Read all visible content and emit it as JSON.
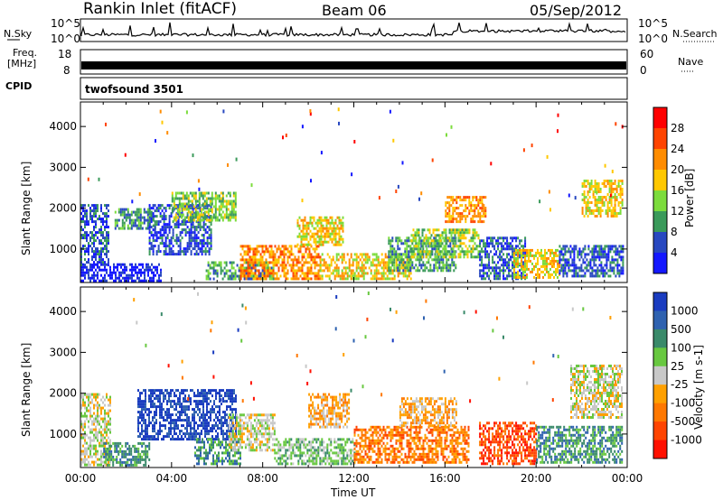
{
  "header": {
    "station": "Rankin Inlet (fitACF)",
    "beam": "Beam 06",
    "date": "05/Sep/2012"
  },
  "top_panels": {
    "nsky_label": "N.Sky",
    "nsearch_label": "N.Search",
    "nsky_ticks": [
      "10^5",
      "10^0"
    ],
    "nsearch_ticks": [
      "10^5",
      "10^0"
    ],
    "freq_label_1": "Freq.",
    "freq_label_2": "[MHz]",
    "freq_ticks": [
      "18",
      "8"
    ],
    "nave_label": "Nave",
    "nave_ticks": [
      "60",
      "0"
    ],
    "cpid_label": "CPID",
    "cpid_value": "twofsound 3501"
  },
  "chart_data": [
    {
      "type": "heatmap",
      "name": "power-panel",
      "ylabel": "Slant Range [km]",
      "yticks": [
        1000,
        2000,
        3000,
        4000
      ],
      "ylim": [
        180,
        4600
      ],
      "xlim_hours": [
        0,
        24
      ],
      "colorbar_label": "Power [dB]",
      "colorbar_ticks": [
        "28",
        "24",
        "20",
        "16",
        "12",
        "8",
        "4"
      ],
      "colorbar_colors": [
        "#ff0000",
        "#ff4400",
        "#ff8c00",
        "#ffc800",
        "#7cdc3c",
        "#3a9a5a",
        "#2848c0",
        "#1418ff"
      ],
      "regions": [
        {
          "t0": 0.0,
          "t1": 3.5,
          "r0": 200,
          "r1": 650,
          "level": 7
        },
        {
          "t0": 0.0,
          "t1": 1.2,
          "r0": 600,
          "r1": 2100,
          "level": 6
        },
        {
          "t0": 1.5,
          "t1": 3.3,
          "r0": 1500,
          "r1": 2000,
          "level": 5
        },
        {
          "t0": 3.0,
          "t1": 5.7,
          "r0": 900,
          "r1": 2100,
          "level": 6
        },
        {
          "t0": 4.0,
          "t1": 6.8,
          "r0": 1700,
          "r1": 2400,
          "level": 4
        },
        {
          "t0": 5.5,
          "t1": 8.5,
          "r0": 250,
          "r1": 700,
          "level": 5
        },
        {
          "t0": 7.0,
          "t1": 10.5,
          "r0": 250,
          "r1": 1100,
          "level": 2
        },
        {
          "t0": 9.5,
          "t1": 11.5,
          "r0": 1100,
          "r1": 1800,
          "level": 3
        },
        {
          "t0": 10.5,
          "t1": 14.5,
          "r0": 250,
          "r1": 900,
          "level": 3
        },
        {
          "t0": 13.5,
          "t1": 16.5,
          "r0": 500,
          "r1": 1300,
          "level": 5
        },
        {
          "t0": 14.5,
          "t1": 17.5,
          "r0": 800,
          "r1": 1500,
          "level": 4
        },
        {
          "t0": 16.0,
          "t1": 17.8,
          "r0": 1700,
          "r1": 2300,
          "level": 2
        },
        {
          "t0": 17.5,
          "t1": 19.5,
          "r0": 300,
          "r1": 1300,
          "level": 6
        },
        {
          "t0": 19.0,
          "t1": 21.0,
          "r0": 300,
          "r1": 1000,
          "level": 3
        },
        {
          "t0": 21.0,
          "t1": 23.8,
          "r0": 350,
          "r1": 1100,
          "level": 6
        },
        {
          "t0": 22.0,
          "t1": 23.8,
          "r0": 1800,
          "r1": 2700,
          "level": 3
        }
      ]
    },
    {
      "type": "heatmap",
      "name": "velocity-panel",
      "ylabel": "Slant Range [km]",
      "yticks": [
        1000,
        2000,
        3000,
        4000
      ],
      "ylim": [
        180,
        4600
      ],
      "xlim_hours": [
        0,
        24
      ],
      "xticks": [
        "00:00",
        "04:00",
        "08:00",
        "12:00",
        "16:00",
        "20:00",
        "00:00"
      ],
      "xlabel": "Time UT",
      "colorbar_label": "Velocity [m s-1]",
      "colorbar_ticks": [
        "1000",
        "500",
        "100",
        "25",
        "-25",
        "-100",
        "-500",
        "-1000"
      ],
      "colorbar_colors": [
        "#1a3cc0",
        "#2f62b0",
        "#3a8a6a",
        "#68c840",
        "#c8c8c8",
        "#ffa000",
        "#ff7800",
        "#ff4400",
        "#ff1000"
      ],
      "regions": [
        {
          "t0": 0.0,
          "t1": 1.3,
          "r0": 250,
          "r1": 2000,
          "level": 4
        },
        {
          "t0": 1.0,
          "t1": 3.0,
          "r0": 250,
          "r1": 800,
          "level": 2
        },
        {
          "t0": 2.5,
          "t1": 6.8,
          "r0": 900,
          "r1": 2100,
          "level": 0
        },
        {
          "t0": 5.0,
          "t1": 7.0,
          "r0": 250,
          "r1": 900,
          "level": 2
        },
        {
          "t0": 6.5,
          "t1": 8.5,
          "r0": 600,
          "r1": 1500,
          "level": 4
        },
        {
          "t0": 8.5,
          "t1": 12.0,
          "r0": 250,
          "r1": 900,
          "level": 3
        },
        {
          "t0": 10.0,
          "t1": 11.8,
          "r0": 1200,
          "r1": 2000,
          "level": 5
        },
        {
          "t0": 12.0,
          "t1": 17.0,
          "r0": 300,
          "r1": 1200,
          "level": 6
        },
        {
          "t0": 14.0,
          "t1": 16.5,
          "r0": 1200,
          "r1": 1900,
          "level": 5
        },
        {
          "t0": 17.5,
          "t1": 20.0,
          "r0": 300,
          "r1": 1300,
          "level": 7
        },
        {
          "t0": 20.0,
          "t1": 23.8,
          "r0": 300,
          "r1": 1200,
          "level": 2
        },
        {
          "t0": 21.5,
          "t1": 23.8,
          "r0": 1400,
          "r1": 2700,
          "level": 4
        }
      ]
    }
  ]
}
